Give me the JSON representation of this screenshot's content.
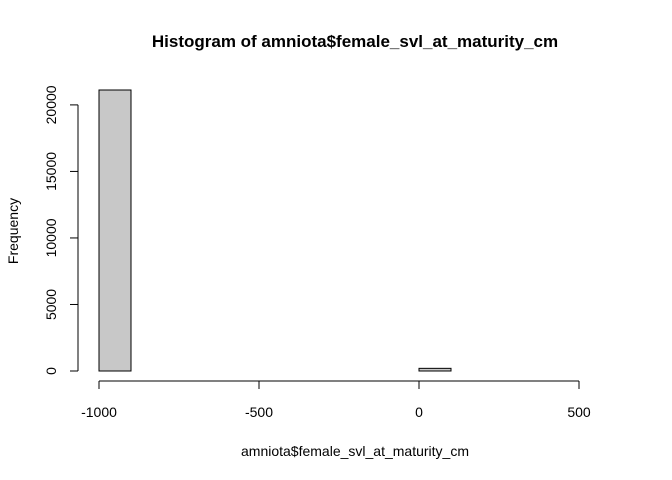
{
  "chart_data": {
    "type": "bar",
    "title": "Histogram of amniota$female_svl_at_maturity_cm",
    "xlabel": "amniota$female_svl_at_maturity_cm",
    "ylabel": "Frequency",
    "bins": [
      {
        "x0": -1000,
        "x1": -900,
        "count": 21120
      },
      {
        "x0": -900,
        "x1": -800,
        "count": 0
      },
      {
        "x0": -800,
        "x1": -700,
        "count": 0
      },
      {
        "x0": -700,
        "x1": -600,
        "count": 0
      },
      {
        "x0": -600,
        "x1": -500,
        "count": 0
      },
      {
        "x0": -500,
        "x1": -400,
        "count": 0
      },
      {
        "x0": -400,
        "x1": -300,
        "count": 0
      },
      {
        "x0": -300,
        "x1": -200,
        "count": 0
      },
      {
        "x0": -200,
        "x1": -100,
        "count": 0
      },
      {
        "x0": -100,
        "x1": 0,
        "count": 0
      },
      {
        "x0": 0,
        "x1": 100,
        "count": 200
      },
      {
        "x0": 100,
        "x1": 200,
        "count": 0
      },
      {
        "x0": 200,
        "x1": 300,
        "count": 0
      },
      {
        "x0": 300,
        "x1": 400,
        "count": 0
      },
      {
        "x0": 400,
        "x1": 500,
        "count": 0
      },
      {
        "x0": 500,
        "x1": 600,
        "count": 0
      }
    ],
    "x_ticks": [
      -1000,
      -500,
      0,
      500
    ],
    "y_ticks": [
      0,
      5000,
      10000,
      15000,
      20000
    ],
    "xlim": [
      -1000,
      600
    ],
    "ylim": [
      0,
      21120
    ],
    "bar_fill": "#c8c8c8",
    "bar_stroke": "#000000",
    "grid": false,
    "legend": "none"
  }
}
